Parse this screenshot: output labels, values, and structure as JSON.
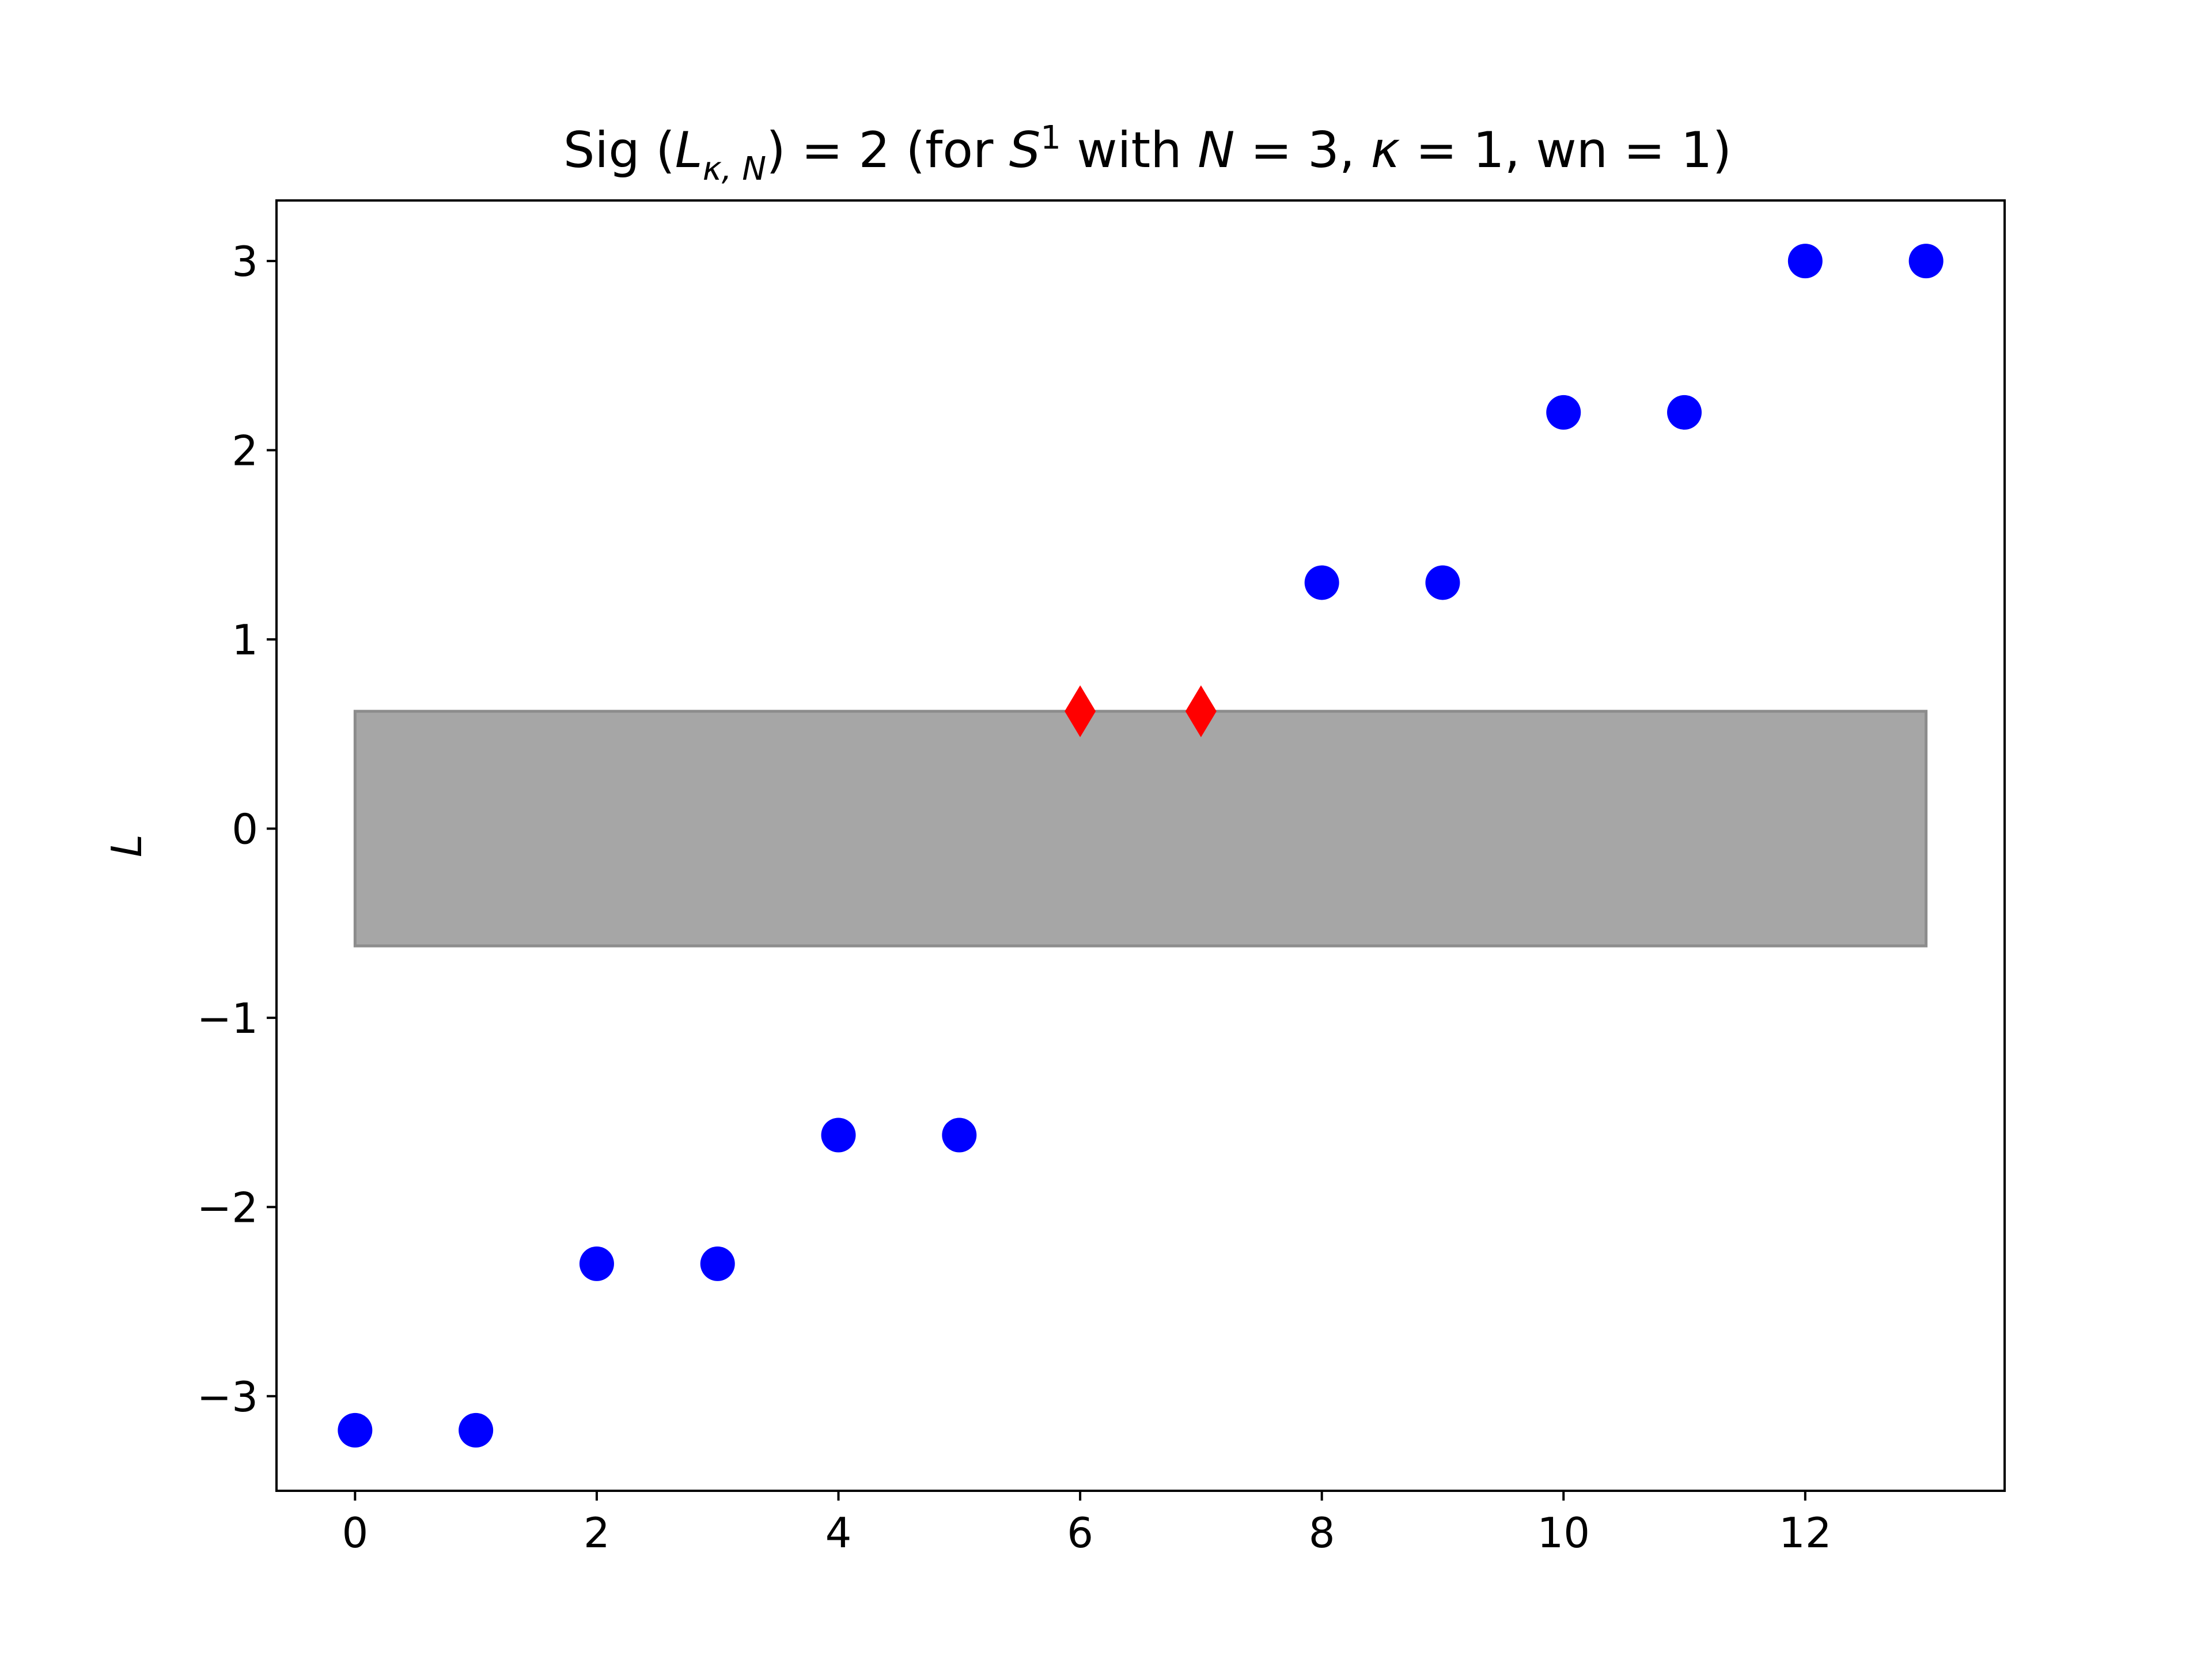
{
  "chart_data": {
    "type": "scatter",
    "title": {
      "prefix": "Sig (",
      "L": "L",
      "L_sub": "κ, N",
      "after_L": ") = 2 (for ",
      "S": "S",
      "S_sup": "1",
      "with": " with ",
      "N": "N",
      "N_value": " = 3, ",
      "kappa": "κ",
      "kappa_value": " = 1, wn  = 1)"
    },
    "xlabel": "",
    "ylabel": "L",
    "xlim": [
      -0.65,
      13.65
    ],
    "ylim": [
      -3.5,
      3.32
    ],
    "x_ticks": [
      0,
      2,
      4,
      6,
      8,
      10,
      12
    ],
    "x_tick_labels": [
      "0",
      "2",
      "4",
      "6",
      "8",
      "10",
      "12"
    ],
    "y_ticks": [
      -3,
      -2,
      -1,
      0,
      1,
      2,
      3
    ],
    "y_tick_labels": [
      "−3",
      "−2",
      "−1",
      "0",
      "1",
      "2",
      "3"
    ],
    "grid": false,
    "shaded_band": {
      "x_range": [
        0,
        13
      ],
      "y_range": [
        -0.62,
        0.62
      ],
      "color": "#a6a6a6",
      "edge_color": "#8c8c8c"
    },
    "series": [
      {
        "marker": "circle",
        "color": "#0000ff",
        "x": [
          0,
          1,
          2,
          3,
          4,
          5,
          8,
          9,
          10,
          11,
          12,
          13
        ],
        "y": [
          -3.18,
          -3.18,
          -2.3,
          -2.3,
          -1.62,
          -1.62,
          1.3,
          1.3,
          2.2,
          2.2,
          3.0,
          3.0
        ]
      },
      {
        "marker": "diamond",
        "color": "#ff0000",
        "x": [
          6,
          7
        ],
        "y": [
          0.62,
          0.62
        ]
      }
    ]
  }
}
